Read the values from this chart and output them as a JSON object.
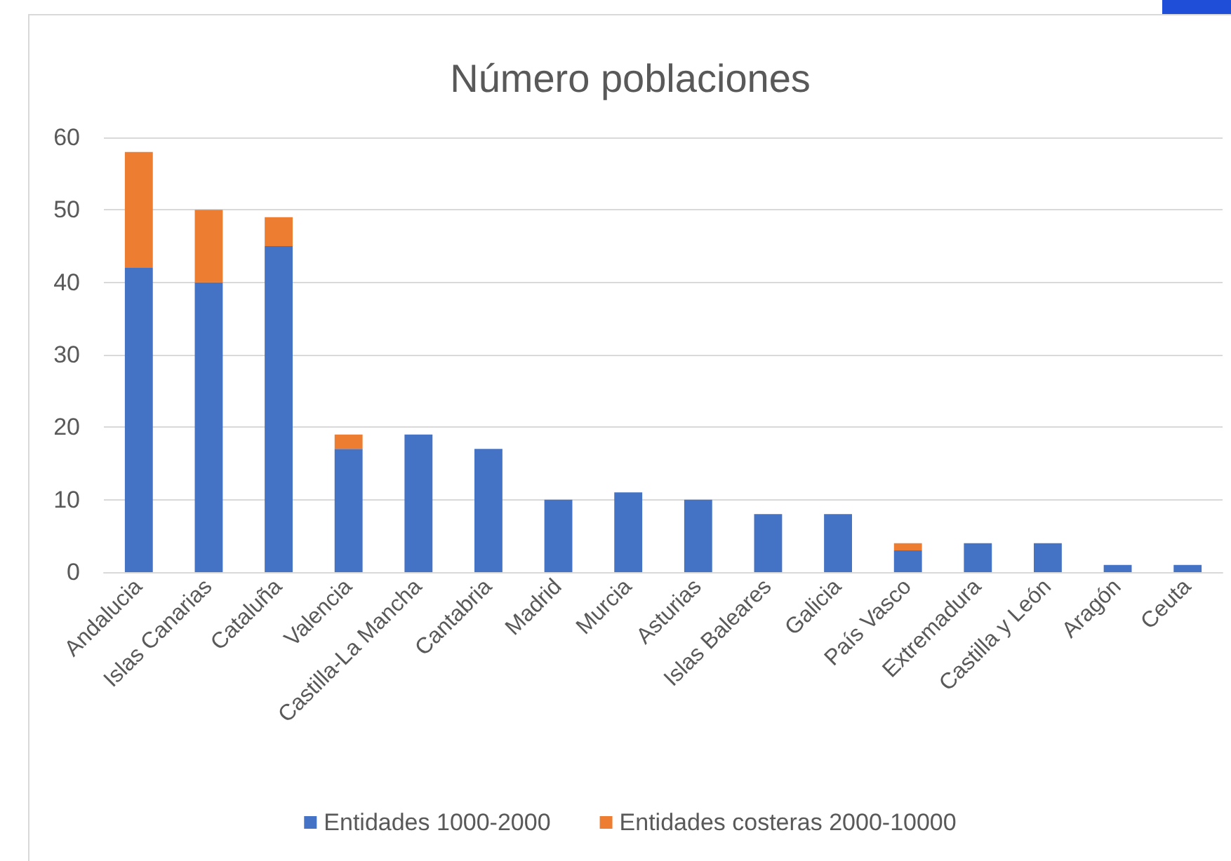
{
  "chart_data": {
    "type": "bar",
    "title": "Número poblaciones",
    "stacked": true,
    "categories": [
      "Andalucia",
      "Islas Canarias",
      "Cataluña",
      "Valencia",
      "Castilla-La Mancha",
      "Cantabria",
      "Madrid",
      "Murcia",
      "Asturias",
      "Islas Baleares",
      "Galicia",
      "País Vasco",
      "Extremadura",
      "Castilla y León",
      "Aragón",
      "Ceuta"
    ],
    "series": [
      {
        "name": "Entidades 1000-2000",
        "color": "#4472c4",
        "values": [
          42,
          40,
          45,
          17,
          19,
          17,
          10,
          11,
          10,
          8,
          8,
          3,
          4,
          4,
          1,
          1
        ]
      },
      {
        "name": "Entidades costeras 2000-10000",
        "color": "#ed7d31",
        "values": [
          16,
          10,
          4,
          2,
          null,
          null,
          null,
          null,
          null,
          null,
          null,
          1,
          null,
          null,
          null,
          null
        ]
      }
    ],
    "ylim": [
      0,
      60
    ],
    "yticks": [
      0,
      10,
      20,
      30,
      40,
      50,
      60
    ],
    "grid": "y",
    "legend": "bottom"
  }
}
